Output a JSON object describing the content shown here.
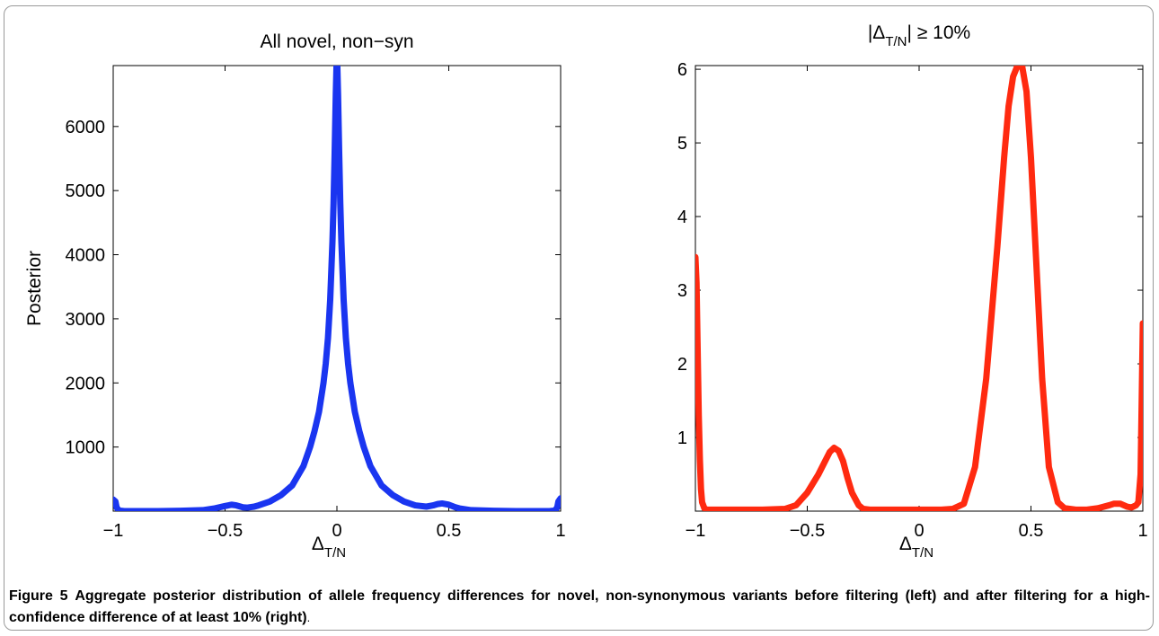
{
  "caption": {
    "label": "Figure 5",
    "text": "Aggregate posterior distribution of allele frequency differences for novel, non-synonymous variants before filtering (left) and after filtering for a high-confidence difference of at least 10% (right)",
    "end": "."
  },
  "chart_data": [
    {
      "type": "line",
      "title": "All novel, non−syn",
      "xlabel_main": "Δ",
      "xlabel_sub": "T/N",
      "ylabel": "Posterior",
      "xlim": [
        -1,
        1
      ],
      "ylim": [
        0,
        6950
      ],
      "xticks": [
        -1,
        -0.5,
        0,
        0.5,
        1
      ],
      "xtick_labels": [
        "−1",
        "−0.5",
        "0",
        "0.5",
        "1"
      ],
      "yticks": [
        1000,
        2000,
        3000,
        4000,
        5000,
        6000
      ],
      "ytick_labels": [
        "1000",
        "2000",
        "3000",
        "4000",
        "5000",
        "6000"
      ],
      "grid": false,
      "series": [
        {
          "color": "#1a35f0",
          "x": [
            -1.0,
            -0.99,
            -0.985,
            -0.975,
            -0.95,
            -0.9,
            -0.8,
            -0.7,
            -0.6,
            -0.55,
            -0.5,
            -0.47,
            -0.45,
            -0.42,
            -0.4,
            -0.37,
            -0.35,
            -0.3,
            -0.25,
            -0.2,
            -0.15,
            -0.12,
            -0.1,
            -0.08,
            -0.06,
            -0.05,
            -0.04,
            -0.03,
            -0.02,
            -0.015,
            -0.01,
            -0.005,
            0.0,
            0.005,
            0.01,
            0.015,
            0.02,
            0.03,
            0.04,
            0.05,
            0.06,
            0.08,
            0.1,
            0.12,
            0.15,
            0.2,
            0.25,
            0.3,
            0.35,
            0.4,
            0.43,
            0.45,
            0.47,
            0.5,
            0.53,
            0.55,
            0.6,
            0.7,
            0.8,
            0.9,
            0.95,
            0.975,
            0.985,
            0.99,
            1.0
          ],
          "y": [
            180,
            150,
            60,
            10,
            0,
            0,
            0,
            5,
            15,
            40,
            80,
            100,
            90,
            60,
            55,
            70,
            90,
            150,
            250,
            400,
            700,
            1000,
            1250,
            1550,
            2000,
            2300,
            2700,
            3300,
            4200,
            4800,
            5600,
            6500,
            7200,
            6500,
            5600,
            4800,
            4200,
            3300,
            2700,
            2300,
            2000,
            1550,
            1250,
            1000,
            700,
            400,
            250,
            150,
            90,
            70,
            90,
            110,
            120,
            100,
            60,
            40,
            15,
            5,
            0,
            0,
            0,
            10,
            60,
            150,
            200
          ]
        }
      ]
    },
    {
      "type": "line",
      "title_main": "|Δ",
      "title_sub": "T/N",
      "title_rest": "| ≥ 10%",
      "xlabel_main": "Δ",
      "xlabel_sub": "T/N",
      "ylabel": "",
      "xlim": [
        -1,
        1
      ],
      "ylim": [
        0,
        6.05
      ],
      "xticks": [
        -1,
        -0.5,
        0,
        0.5,
        1
      ],
      "xtick_labels": [
        "−1",
        "−0.5",
        "0",
        "0.5",
        "1"
      ],
      "yticks": [
        1,
        2,
        3,
        4,
        5,
        6
      ],
      "ytick_labels": [
        "1",
        "2",
        "3",
        "4",
        "5",
        "6"
      ],
      "grid": false,
      "series": [
        {
          "color": "#ff2a10",
          "x": [
            -1.0,
            -0.995,
            -0.99,
            -0.985,
            -0.98,
            -0.975,
            -0.97,
            -0.96,
            -0.95,
            -0.9,
            -0.8,
            -0.7,
            -0.6,
            -0.55,
            -0.5,
            -0.45,
            -0.42,
            -0.4,
            -0.38,
            -0.36,
            -0.34,
            -0.32,
            -0.3,
            -0.27,
            -0.25,
            -0.22,
            -0.2,
            -0.1,
            0.0,
            0.1,
            0.15,
            0.2,
            0.25,
            0.3,
            0.35,
            0.38,
            0.4,
            0.42,
            0.44,
            0.46,
            0.48,
            0.5,
            0.52,
            0.55,
            0.58,
            0.62,
            0.65,
            0.7,
            0.75,
            0.8,
            0.85,
            0.87,
            0.9,
            0.93,
            0.95,
            0.97,
            0.98,
            0.99,
            0.995,
            1.0
          ],
          "y": [
            3.45,
            3.1,
            2.2,
            1.3,
            0.7,
            0.3,
            0.12,
            0.04,
            0.02,
            0.02,
            0.02,
            0.02,
            0.03,
            0.08,
            0.25,
            0.5,
            0.68,
            0.8,
            0.86,
            0.82,
            0.68,
            0.45,
            0.25,
            0.08,
            0.03,
            0.02,
            0.02,
            0.02,
            0.02,
            0.02,
            0.03,
            0.1,
            0.6,
            1.8,
            3.6,
            4.8,
            5.5,
            5.9,
            6.05,
            6.05,
            5.7,
            4.8,
            3.6,
            1.8,
            0.6,
            0.12,
            0.04,
            0.02,
            0.02,
            0.04,
            0.08,
            0.1,
            0.1,
            0.06,
            0.05,
            0.08,
            0.12,
            0.5,
            1.5,
            2.55
          ]
        }
      ]
    }
  ]
}
